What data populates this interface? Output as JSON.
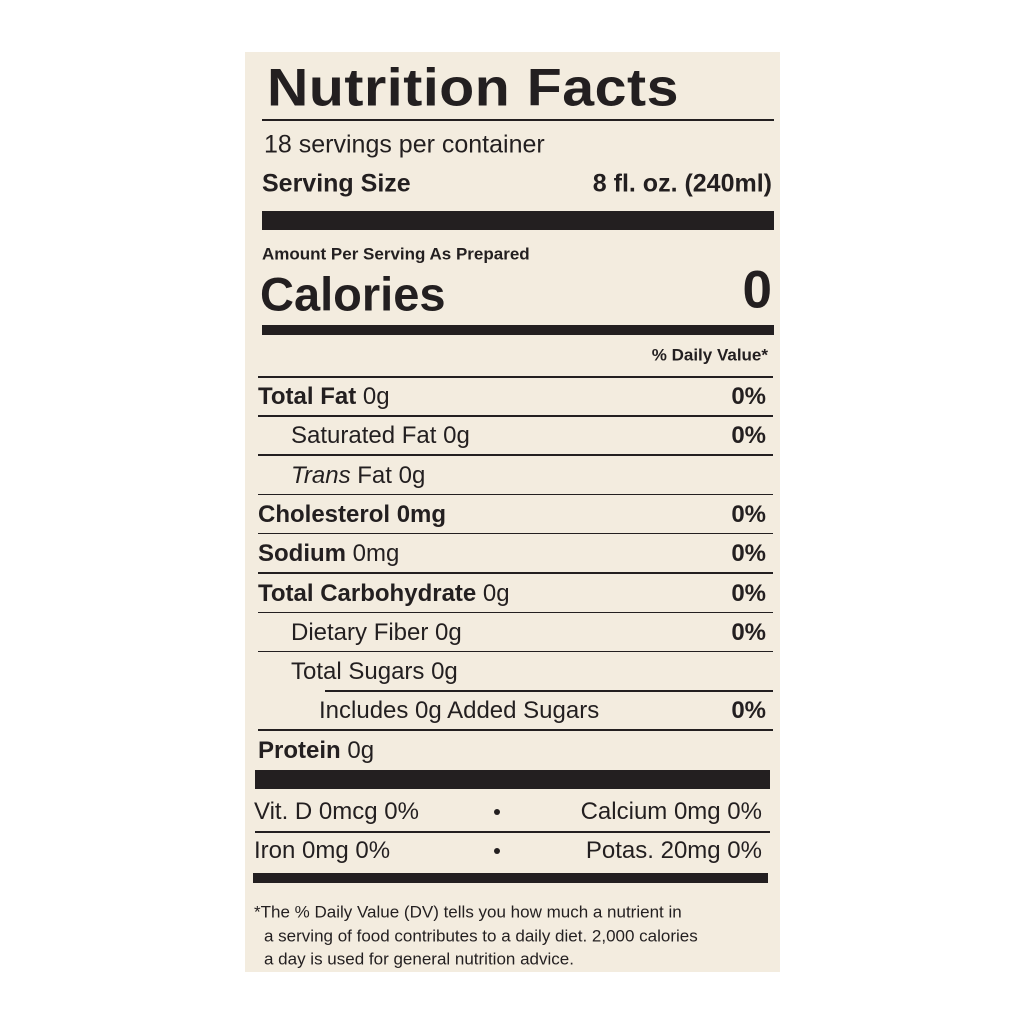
{
  "title": "Nutrition Facts",
  "servings": "18 servings per container",
  "serving_size": {
    "label": "Serving Size",
    "value": "8 fl. oz. (240ml)"
  },
  "amount_per_serving": "Amount Per Serving As Prepared",
  "calories": {
    "label": "Calories",
    "value": "0"
  },
  "dv_header": "% Daily Value*",
  "rows": [
    {
      "label": "Total Fat",
      "amount": "0g",
      "dv": "0%",
      "indent": 0
    },
    {
      "label": "Saturated Fat",
      "amount": "0g",
      "dv": "0%",
      "indent": 1
    },
    {
      "label": "Trans",
      "amount": "Fat 0g",
      "indent": 1,
      "italic": true
    },
    {
      "label": "Cholesterol",
      "amount": "0mg",
      "dv": "0%",
      "indent": 0,
      "amount_bold": true
    },
    {
      "label": "Sodium",
      "amount": "0mg",
      "dv": "0%",
      "indent": 0
    },
    {
      "label": "Total Carbohydrate",
      "amount": "0g",
      "dv": "0%",
      "indent": 0
    },
    {
      "label": "Dietary Fiber",
      "amount": "0g",
      "dv": "0%",
      "indent": 1
    },
    {
      "label": "Total Sugars",
      "amount": "0g",
      "indent": 1
    },
    {
      "label": "Includes 0g Added Sugars",
      "dv": "0%",
      "indent": 2
    },
    {
      "label": "Protein",
      "amount": "0g",
      "indent": 0
    }
  ],
  "vitamins": [
    {
      "left": "Vit. D 0mcg 0%",
      "right": "Calcium 0mg 0%"
    },
    {
      "left": "Iron 0mg 0%",
      "right": "Potas. 20mg 0%"
    }
  ],
  "footnote": [
    "*The % Daily Value (DV) tells you how much a nutrient in",
    "a serving of food contributes to a daily diet. 2,000 calories",
    "a day is used for general nutrition advice."
  ]
}
